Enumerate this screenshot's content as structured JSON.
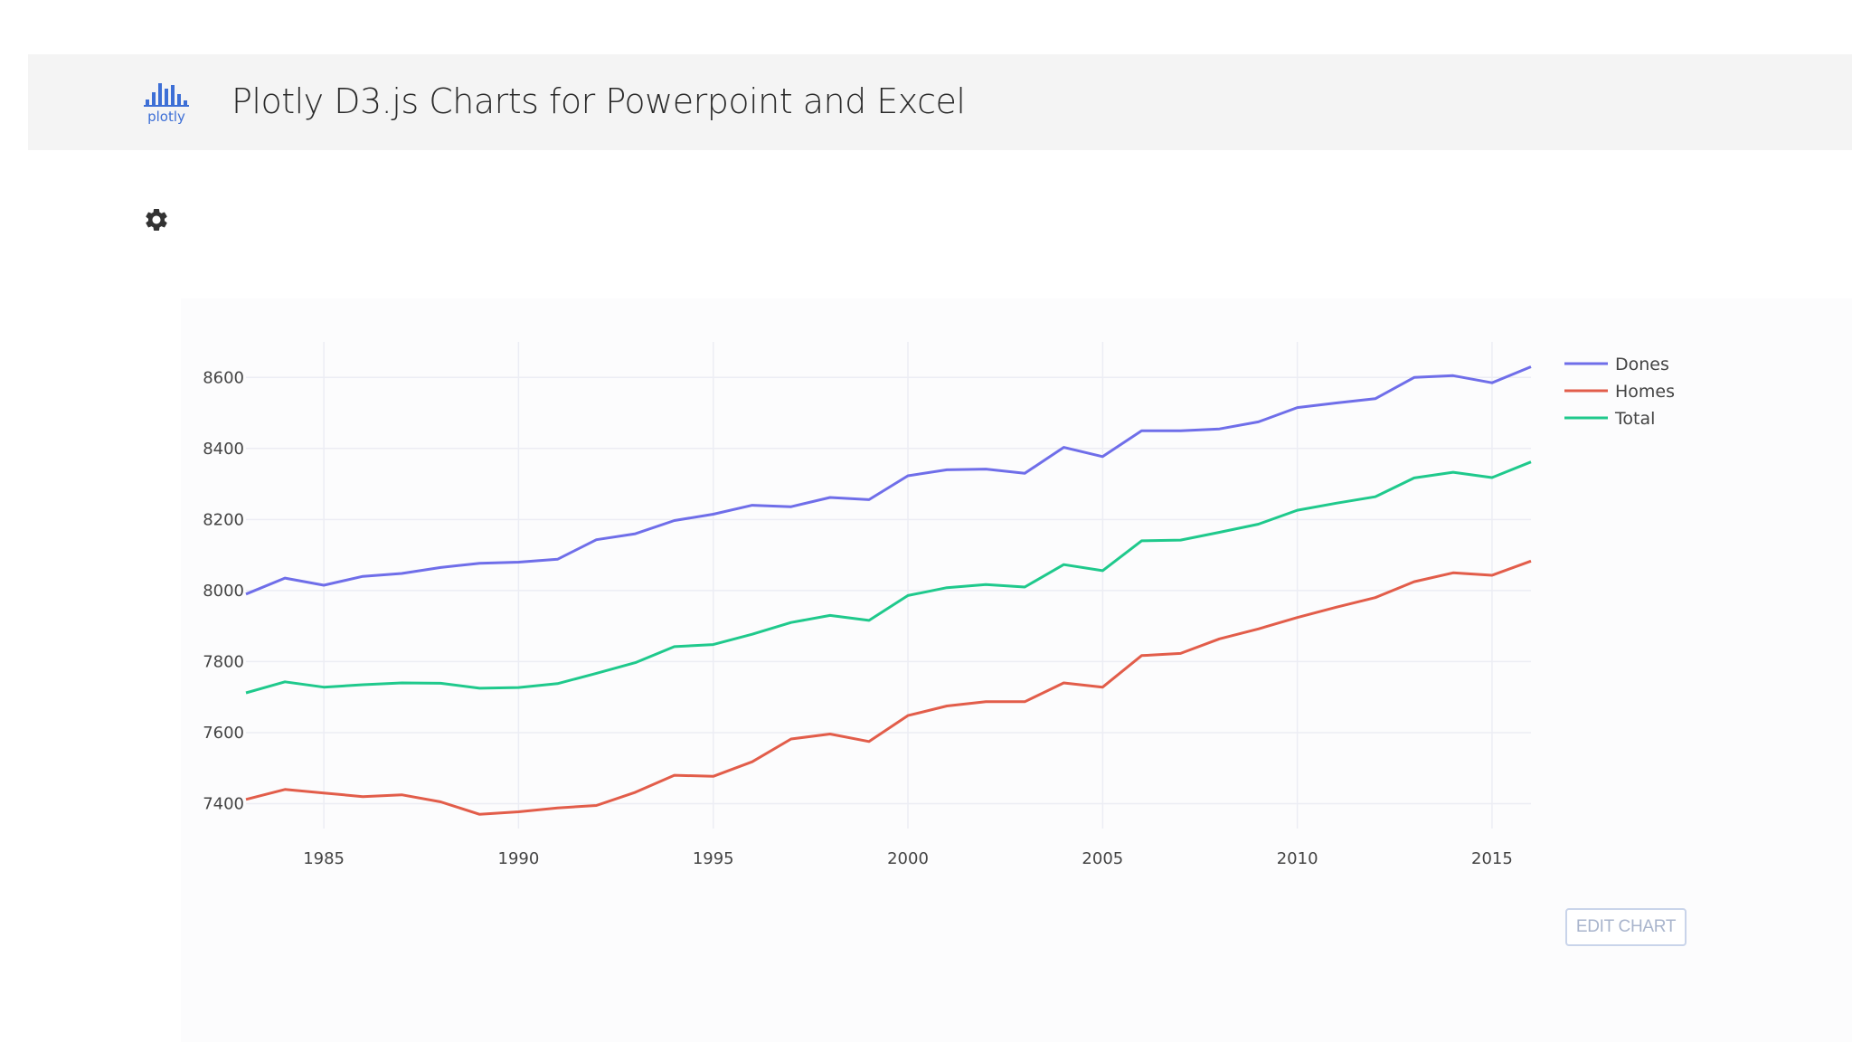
{
  "header": {
    "logo_text": "plotly",
    "title": "Plotly D3.js Charts for Powerpoint and Excel"
  },
  "toolbar": {
    "settings_icon": "gear-icon"
  },
  "edit_button": {
    "label": "EDIT CHART"
  },
  "colors": {
    "Dones": "#6f6ee9",
    "Homes": "#e25d4a",
    "Total": "#1fc98c",
    "grid": "#ecedf4",
    "logo": "#3d6fd6"
  },
  "chart_data": {
    "type": "line",
    "title": "",
    "xlabel": "",
    "ylabel": "",
    "x": [
      1983,
      1984,
      1985,
      1986,
      1987,
      1988,
      1989,
      1990,
      1991,
      1992,
      1993,
      1994,
      1995,
      1996,
      1997,
      1998,
      1999,
      2000,
      2001,
      2002,
      2003,
      2004,
      2005,
      2006,
      2007,
      2008,
      2009,
      2010,
      2011,
      2012,
      2013,
      2014,
      2015,
      2016
    ],
    "xlim": [
      1983,
      2016
    ],
    "ylim": [
      7330,
      8700
    ],
    "xticks": [
      1985,
      1990,
      1995,
      2000,
      2005,
      2010,
      2015
    ],
    "yticks": [
      7400,
      7600,
      7800,
      8000,
      8200,
      8400,
      8600
    ],
    "grid": true,
    "legend_position": "top-right",
    "series": [
      {
        "name": "Dones",
        "values": [
          7990,
          8035,
          8015,
          8040,
          8048,
          8065,
          8077,
          8080,
          8088,
          8143,
          8160,
          8197,
          8215,
          8240,
          8236,
          8262,
          8256,
          8323,
          8340,
          8342,
          8330,
          8403,
          8377,
          8450,
          8450,
          8455,
          8475,
          8515,
          8528,
          8540,
          8600,
          8605,
          8585,
          8630
        ]
      },
      {
        "name": "Homes",
        "values": [
          7412,
          7440,
          7430,
          7420,
          7425,
          7405,
          7370,
          7377,
          7388,
          7395,
          7432,
          7480,
          7477,
          7518,
          7582,
          7596,
          7575,
          7648,
          7675,
          7687,
          7687,
          7740,
          7728,
          7817,
          7823,
          7864,
          7892,
          7924,
          7953,
          7980,
          8025,
          8050,
          8043,
          8083
        ]
      },
      {
        "name": "Total",
        "values": [
          7712,
          7743,
          7728,
          7735,
          7740,
          7739,
          7725,
          7727,
          7738,
          7767,
          7797,
          7842,
          7848,
          7877,
          7910,
          7930,
          7916,
          7986,
          8008,
          8017,
          8010,
          8073,
          8056,
          8140,
          8142,
          8164,
          8187,
          8226,
          8246,
          8264,
          8317,
          8333,
          8318,
          8362
        ]
      }
    ]
  }
}
